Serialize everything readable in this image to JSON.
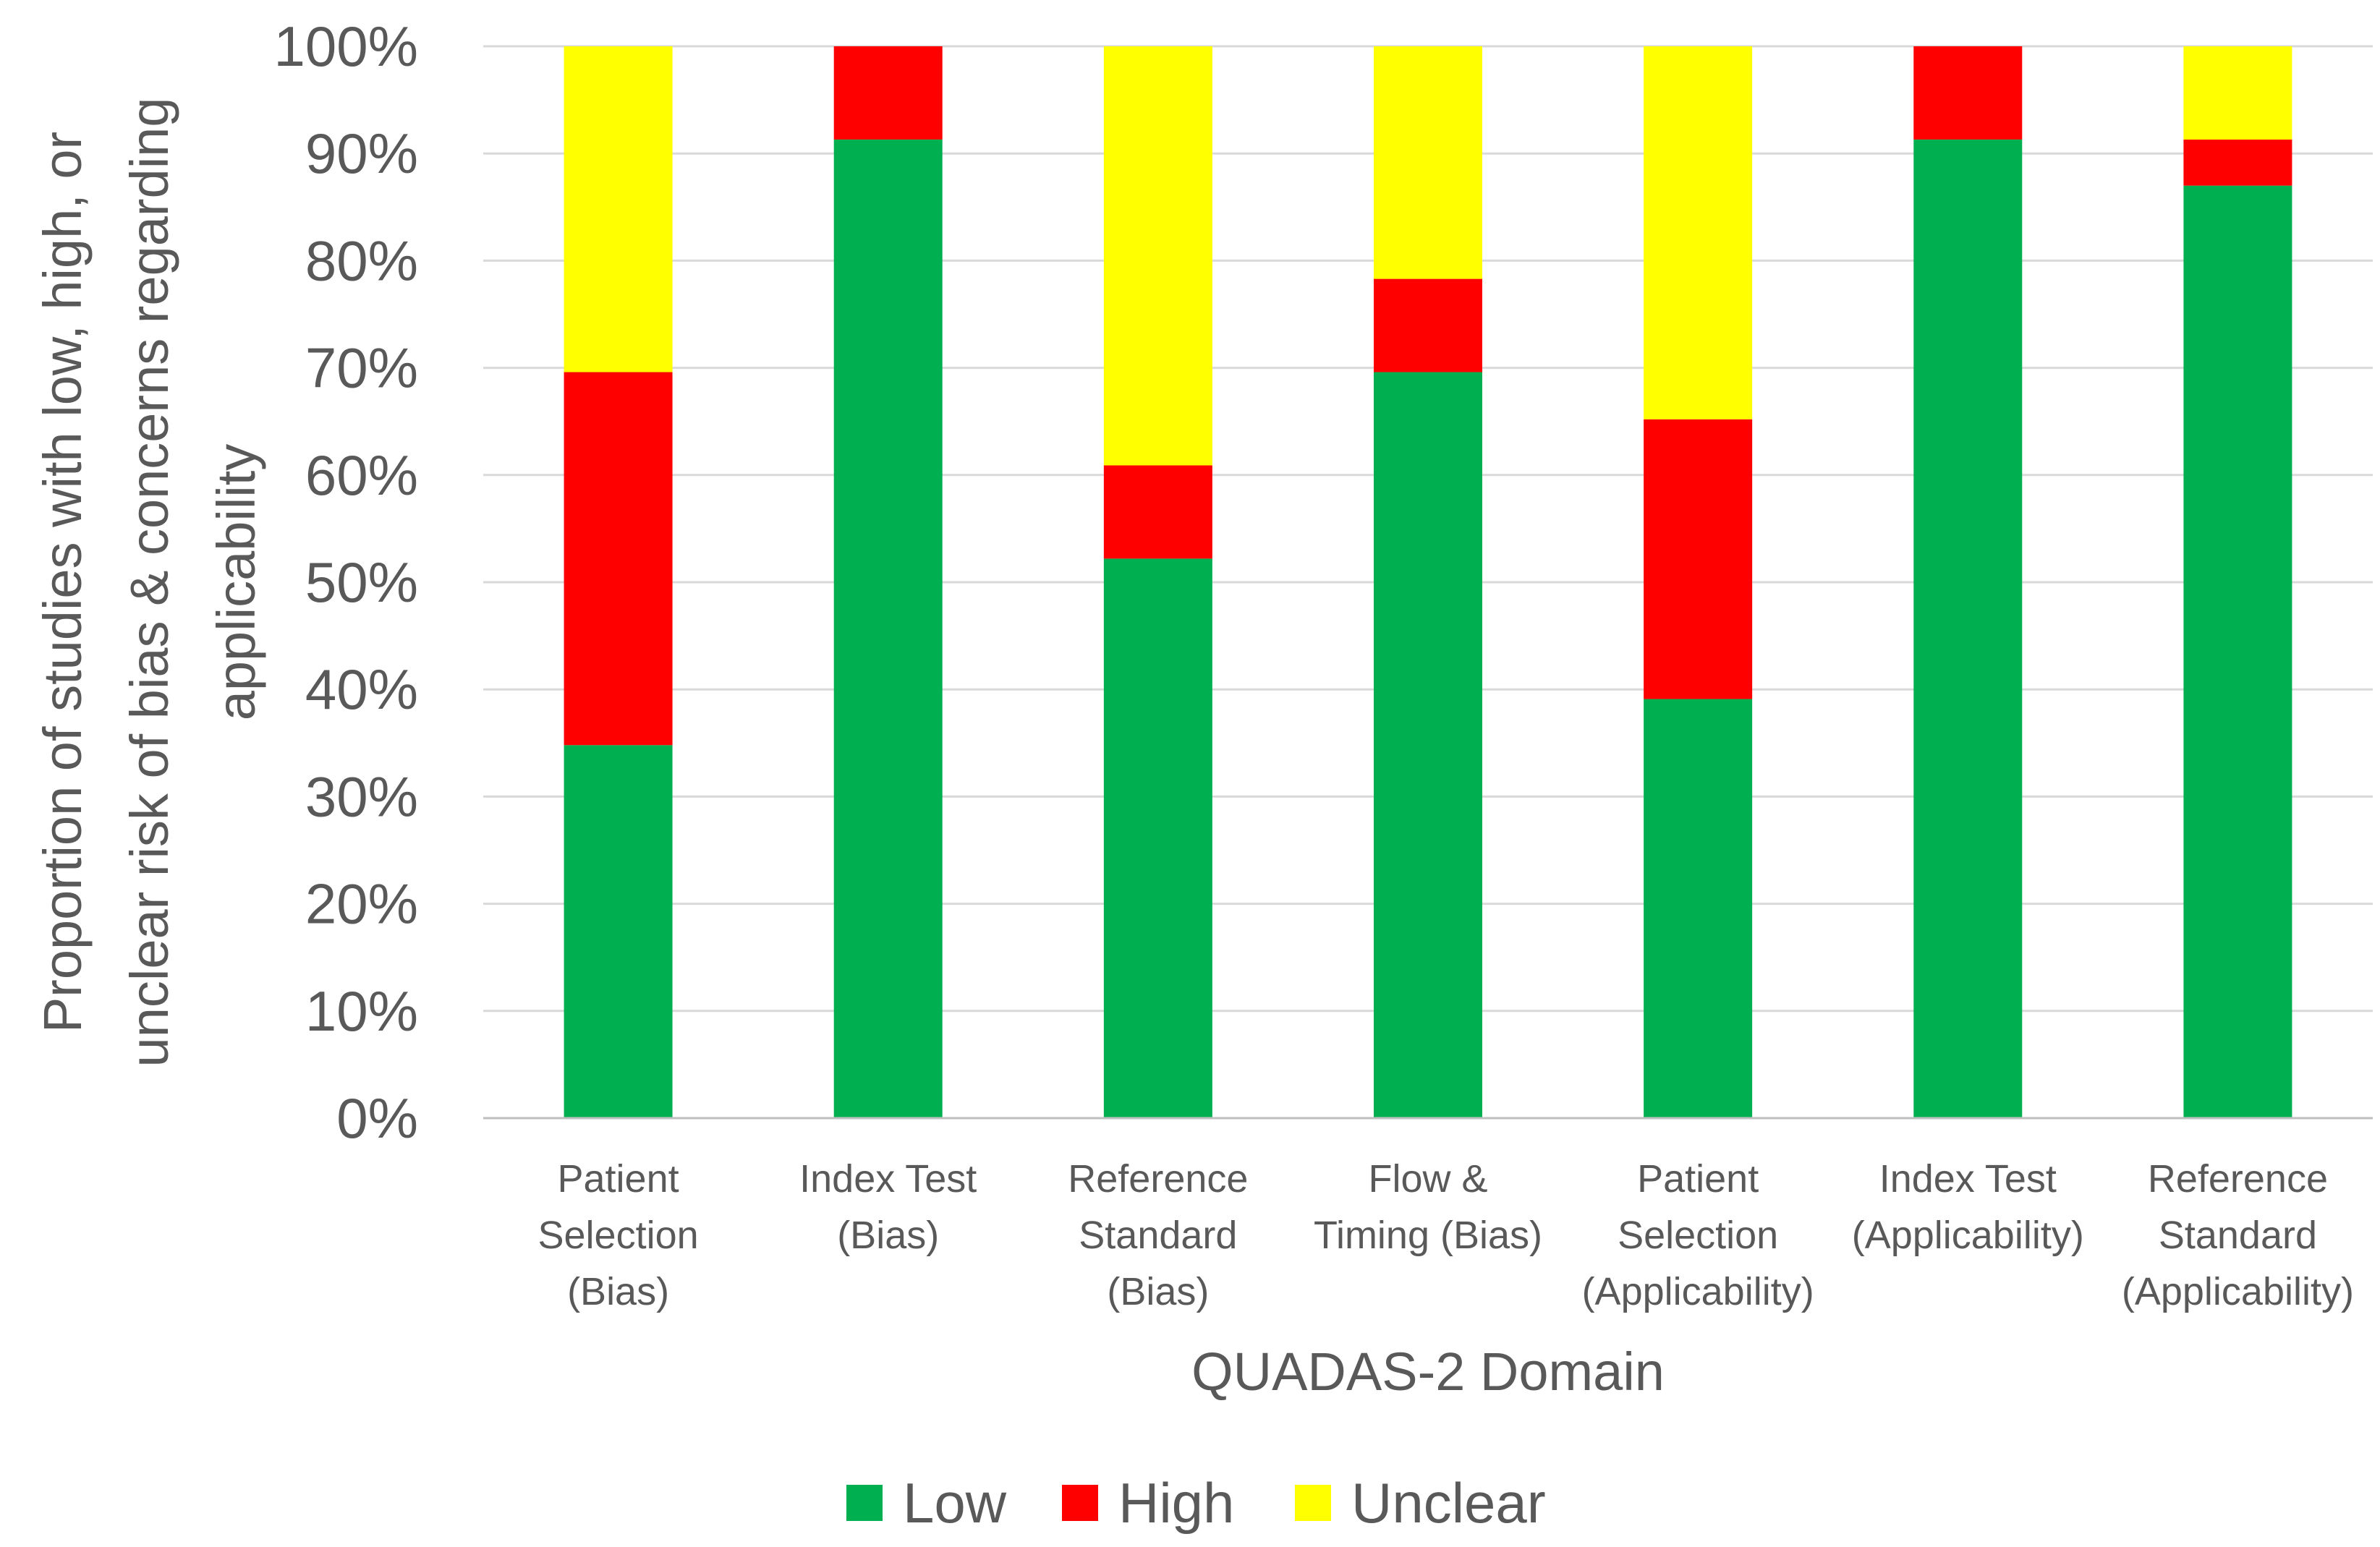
{
  "chart_data": {
    "type": "bar",
    "stacked": true,
    "title": "",
    "xlabel": "QUADAS-2 Domain",
    "ylabel": "Proportion of studies with low, high, or unclear risk of bias & concerns regarding applicability",
    "ylim": [
      0,
      100
    ],
    "yticks": [
      "0%",
      "10%",
      "20%",
      "30%",
      "40%",
      "50%",
      "60%",
      "70%",
      "80%",
      "90%",
      "100%"
    ],
    "categories": [
      [
        "Patient",
        "Selection",
        "(Bias)"
      ],
      [
        "Index Test",
        "(Bias)"
      ],
      [
        "Reference",
        "Standard",
        "(Bias)"
      ],
      [
        "Flow &",
        "Timing (Bias)"
      ],
      [
        "Patient",
        "Selection",
        "(Applicability)"
      ],
      [
        "Index Test",
        "(Applicability)"
      ],
      [
        "Reference",
        "Standard",
        "(Applicability)"
      ]
    ],
    "series": [
      {
        "name": "Low",
        "color": "#00b050",
        "values": [
          34.8,
          91.3,
          52.2,
          69.6,
          39.1,
          91.3,
          87.0
        ]
      },
      {
        "name": "High",
        "color": "#ff0000",
        "values": [
          34.8,
          8.7,
          8.7,
          8.7,
          26.1,
          8.7,
          4.3
        ]
      },
      {
        "name": "Unclear",
        "color": "#ffff00",
        "values": [
          30.4,
          0,
          39.1,
          21.7,
          34.8,
          0,
          8.7
        ]
      }
    ],
    "grid": true,
    "legend_position": "bottom"
  }
}
